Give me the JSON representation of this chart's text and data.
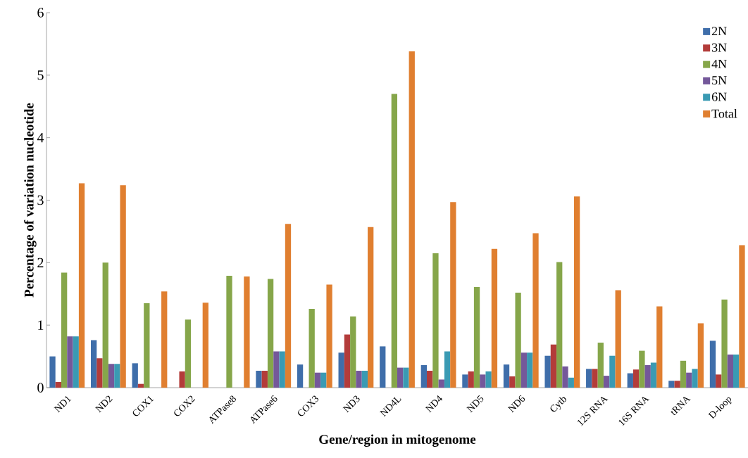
{
  "chart_data": {
    "type": "bar",
    "xlabel": "Gene/region in mitogenome",
    "ylabel": "Percentage of variation nucleotide",
    "categories": [
      "ND1",
      "ND2",
      "COX1",
      "COX2",
      "ATPase8",
      "ATPase6",
      "COX3",
      "ND3",
      "ND4L",
      "ND4",
      "ND5",
      "ND6",
      "Cytb",
      "12S RNA",
      "16S RNA",
      "tRNA",
      "D-loop"
    ],
    "series": [
      {
        "name": "2N",
        "color": "#3f6eaa",
        "values": [
          0.5,
          0.76,
          0.39,
          0,
          0,
          0.27,
          0.37,
          0.56,
          0.66,
          0.36,
          0.21,
          0.37,
          0.51,
          0.3,
          0.23,
          0.11,
          0.75
        ]
      },
      {
        "name": "3N",
        "color": "#b33c3a",
        "values": [
          0.09,
          0.47,
          0.06,
          0.26,
          0,
          0.27,
          0,
          0.85,
          0,
          0.27,
          0.26,
          0.18,
          0.69,
          0.3,
          0.29,
          0.11,
          0.21
        ]
      },
      {
        "name": "4N",
        "color": "#86a64a",
        "values": [
          1.84,
          2.0,
          1.35,
          1.09,
          1.79,
          1.74,
          1.26,
          1.14,
          4.7,
          2.15,
          1.61,
          1.52,
          2.01,
          0.72,
          0.59,
          0.43,
          1.41
        ]
      },
      {
        "name": "5N",
        "color": "#74589a",
        "values": [
          0.82,
          0.38,
          0,
          0,
          0,
          0.58,
          0.24,
          0.27,
          0.32,
          0.13,
          0.21,
          0.56,
          0.34,
          0.19,
          0.36,
          0.24,
          0.53
        ]
      },
      {
        "name": "6N",
        "color": "#3a9ab3",
        "values": [
          0.82,
          0.38,
          0,
          0,
          0,
          0.58,
          0.24,
          0.27,
          0.32,
          0.58,
          0.26,
          0.56,
          0.16,
          0.51,
          0.4,
          0.3,
          0.53
        ]
      },
      {
        "name": "Total",
        "color": "#e07f30",
        "values": [
          3.27,
          3.24,
          1.54,
          1.36,
          1.78,
          2.62,
          1.65,
          2.57,
          5.38,
          2.97,
          2.22,
          2.47,
          3.06,
          1.56,
          1.3,
          1.03,
          2.28
        ]
      }
    ],
    "ylim": [
      0,
      6
    ],
    "yticks": [
      0,
      1,
      2,
      3,
      4,
      5,
      6
    ],
    "grid": false,
    "legend": "top right"
  }
}
